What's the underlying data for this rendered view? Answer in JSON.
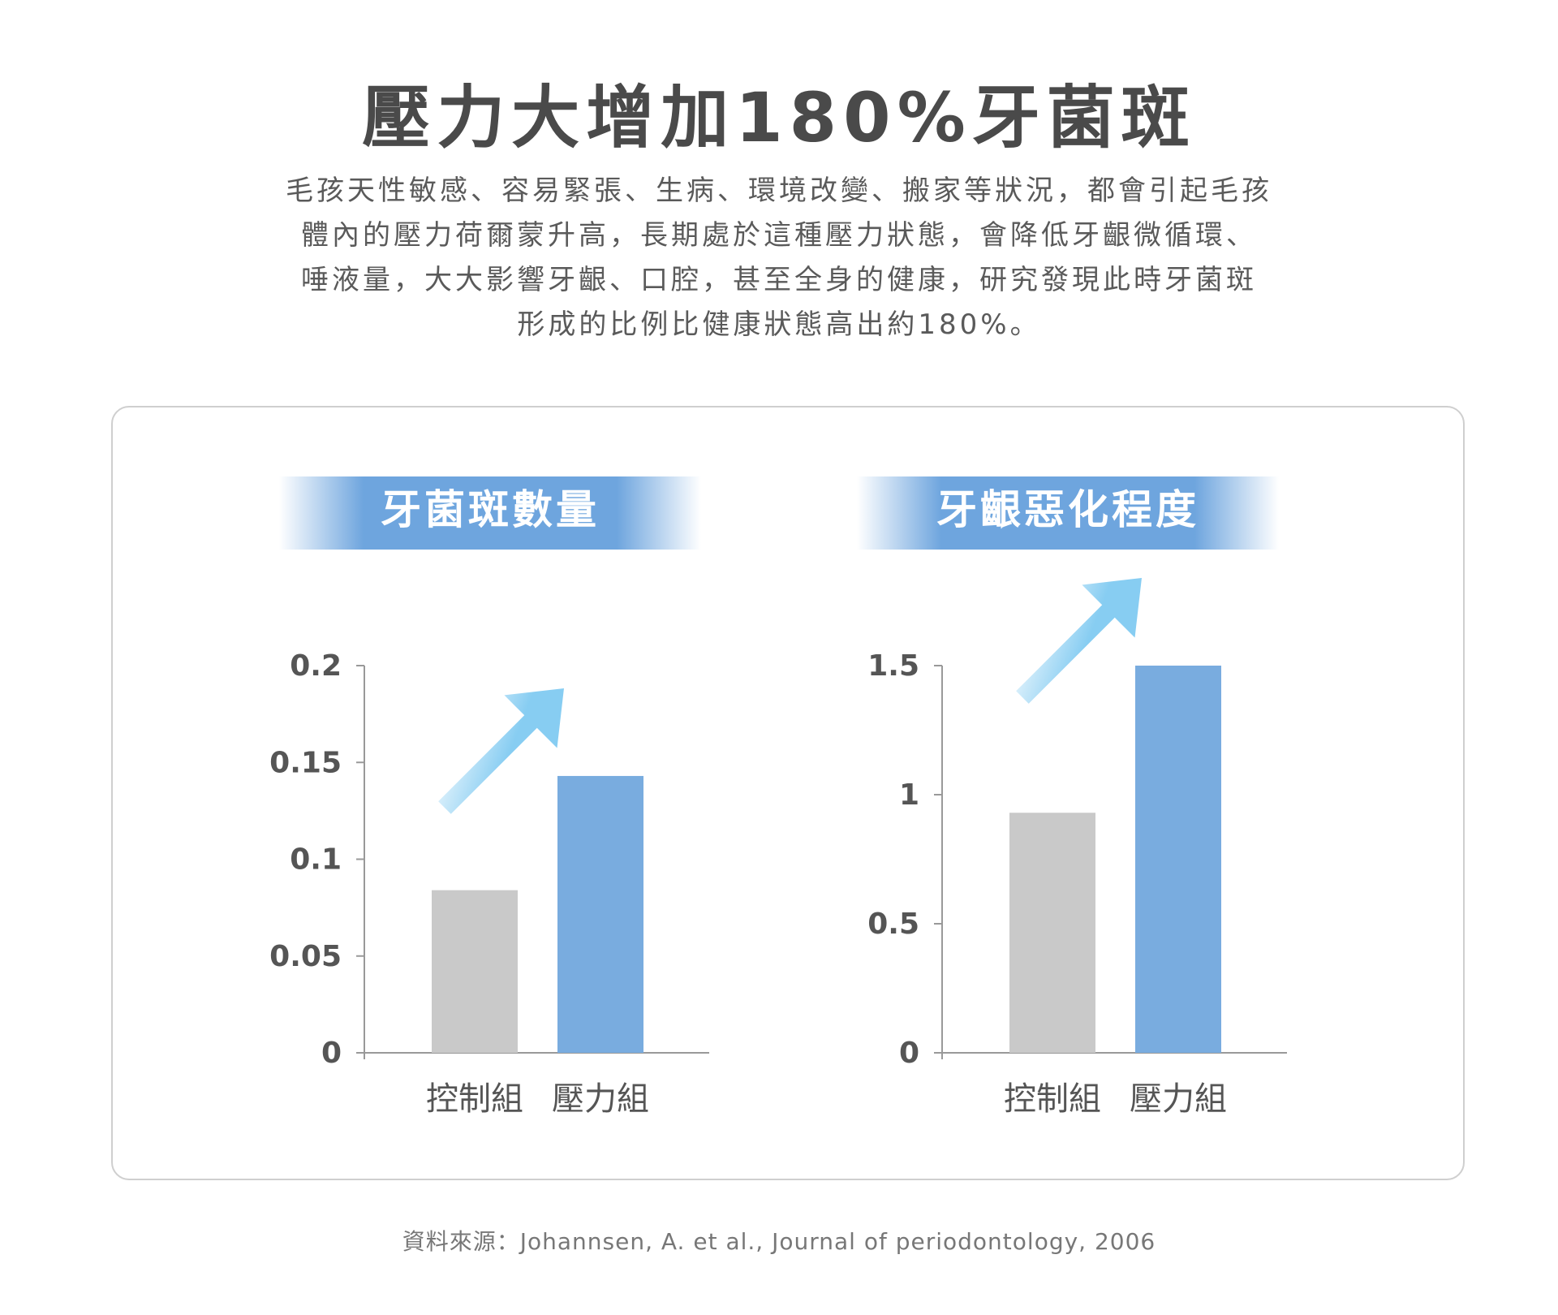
{
  "header": {
    "title": "壓力大增加180%牙菌斑",
    "intro_lines": [
      "毛孩天性敏感、容易緊張、生病、環境改變、搬家等狀況，都會引起毛孩",
      "體內的壓力荷爾蒙升高，長期處於這種壓力狀態，會降低牙齦微循環、",
      "唾液量，大大影響牙齦、口腔，甚至全身的健康，研究發現此時牙菌斑",
      "形成的比例比健康狀態高出約180%。"
    ]
  },
  "colors": {
    "control_bar": "#c9c9c9",
    "stress_bar": "#79acdf",
    "arrow": "#87cdf2",
    "banner": "#6ea5de"
  },
  "chart_data": [
    {
      "type": "bar",
      "title": "牙菌斑數量",
      "categories": [
        "控制組",
        "壓力組"
      ],
      "values": [
        0.084,
        0.143
      ],
      "ylim": [
        0,
        0.2
      ],
      "yticks": [
        "0",
        "0.05",
        "0.1",
        "0.15",
        "0.2"
      ],
      "ytick_values": [
        0,
        0.05,
        0.1,
        0.15,
        0.2
      ],
      "xlabel": "",
      "ylabel": "",
      "grid": false
    },
    {
      "type": "bar",
      "title": "牙齦惡化程度",
      "categories": [
        "控制組",
        "壓力組"
      ],
      "values": [
        0.93,
        1.5
      ],
      "ylim": [
        0,
        1.5
      ],
      "yticks": [
        "0",
        "0.5",
        "1",
        "1.5"
      ],
      "ytick_values": [
        0,
        0.5,
        1,
        1.5
      ],
      "xlabel": "",
      "ylabel": "",
      "grid": false
    }
  ],
  "footer": {
    "source": "資料來源：Johannsen, A. et al., Journal of periodontology, 2006"
  }
}
